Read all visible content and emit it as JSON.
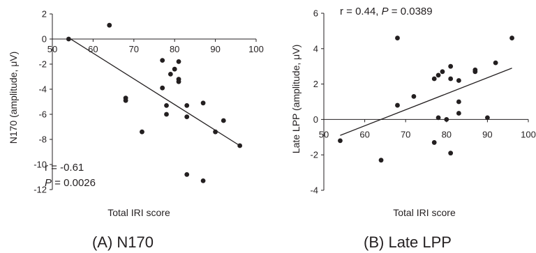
{
  "chart_data": [
    {
      "type": "scatter",
      "caption": "(A) N170",
      "xlabel": "Total IRI score",
      "ylabel": "N170 (amplitude, μV)",
      "xlim": [
        50,
        100
      ],
      "ylim": [
        -12,
        2
      ],
      "xticks": [
        "50",
        "60",
        "70",
        "80",
        "90",
        "100"
      ],
      "yticks": [
        "2",
        "0",
        "-2",
        "-4",
        "-6",
        "-8",
        "-10",
        "-12"
      ],
      "stats": {
        "r_text": "r = -0.61",
        "p_label": "P",
        "p_value": " = 0.0026"
      },
      "trendline": {
        "x": [
          54,
          96
        ],
        "y": [
          0.1,
          -8.5
        ]
      },
      "points": {
        "x": [
          54,
          64,
          68,
          68,
          72,
          77,
          77,
          78,
          78,
          79,
          80,
          81,
          81,
          81,
          83,
          83,
          83,
          87,
          87,
          90,
          92,
          96
        ],
        "y": [
          0.0,
          1.1,
          -4.7,
          -4.9,
          -7.4,
          -1.7,
          -3.9,
          -5.3,
          -6.0,
          -2.8,
          -2.4,
          -1.8,
          -3.2,
          -3.4,
          -5.3,
          -6.2,
          -10.8,
          -5.1,
          -11.3,
          -7.4,
          -6.5,
          -8.5
        ]
      }
    },
    {
      "type": "scatter",
      "caption": "(B) Late LPP",
      "xlabel": "Total IRI score",
      "ylabel": "Late LPP (amplitude, μV)",
      "xlim": [
        50,
        100
      ],
      "ylim": [
        -4,
        6
      ],
      "xticks": [
        "50",
        "60",
        "70",
        "80",
        "90",
        "100"
      ],
      "yticks": [
        "6",
        "4",
        "2",
        "0",
        "-2",
        "-4"
      ],
      "stats": {
        "r_text": "r = 0.44, ",
        "p_label": "P",
        "p_value": " = 0.0389"
      },
      "trendline": {
        "x": [
          54,
          96
        ],
        "y": [
          -0.9,
          2.9
        ]
      },
      "points": {
        "x": [
          54,
          64,
          68,
          68,
          72,
          77,
          77,
          78,
          78,
          79,
          80,
          81,
          81,
          81,
          83,
          83,
          83,
          87,
          87,
          90,
          92,
          96
        ],
        "y": [
          -1.2,
          -2.3,
          4.6,
          0.8,
          1.3,
          2.3,
          -1.3,
          2.5,
          0.1,
          2.7,
          0.0,
          3.0,
          2.3,
          -1.9,
          2.2,
          1.0,
          0.35,
          2.7,
          2.8,
          0.1,
          3.2,
          4.6
        ]
      }
    }
  ]
}
